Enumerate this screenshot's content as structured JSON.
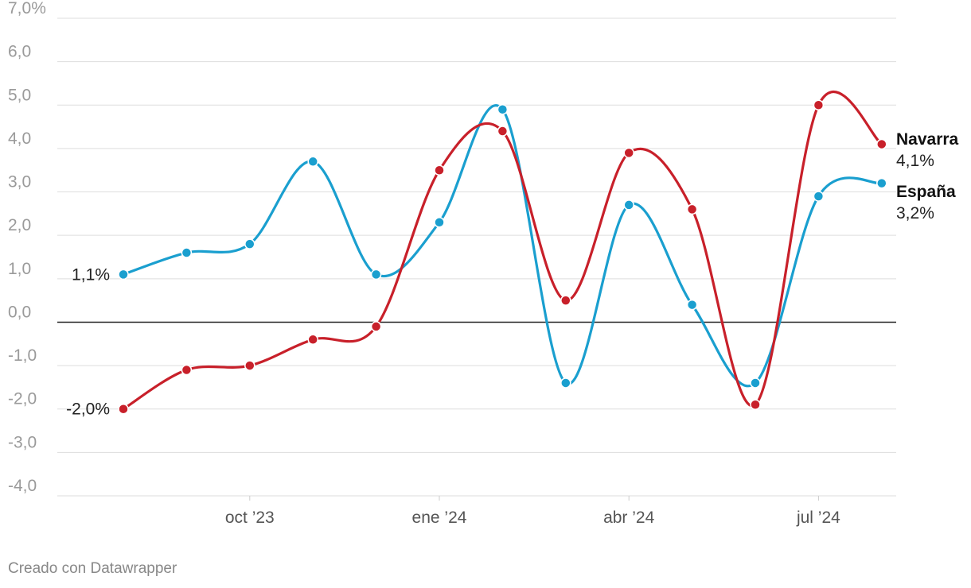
{
  "chart_data": {
    "type": "line",
    "title": "",
    "xlabel": "",
    "ylabel": "",
    "ylim": [
      -4,
      7
    ],
    "yticks": [
      7,
      6,
      5,
      4,
      3,
      2,
      1,
      0,
      -1,
      -2,
      -3,
      -4
    ],
    "ytick_labels": [
      "7,0%",
      "6,0",
      "5,0",
      "4,0",
      "3,0",
      "2,0",
      "1,0",
      "0,0",
      "-1,0",
      "-2,0",
      "-3,0",
      "-4,0"
    ],
    "x": [
      "2023-08",
      "2023-09",
      "2023-10",
      "2023-11",
      "2023-12",
      "2024-01",
      "2024-02",
      "2024-03",
      "2024-04",
      "2024-05",
      "2024-06",
      "2024-07",
      "2024-08"
    ],
    "xticks": [
      "2023-10",
      "2024-01",
      "2024-04",
      "2024-07"
    ],
    "xtick_labels": [
      "oct ’23",
      "ene ’24",
      "abr ’24",
      "jul ’24"
    ],
    "grid": true,
    "zero_line": true,
    "series": [
      {
        "name": "España",
        "color": "#1a9fcf",
        "values": [
          1.1,
          1.6,
          1.8,
          3.7,
          1.1,
          2.3,
          4.9,
          -1.4,
          2.7,
          0.4,
          -1.4,
          2.9,
          3.2
        ],
        "start_label": "1,1%",
        "end_label": "3,2%"
      },
      {
        "name": "Navarra",
        "color": "#c8202a",
        "values": [
          -2.0,
          -1.1,
          -1.0,
          -0.4,
          -0.1,
          3.5,
          4.4,
          0.5,
          3.9,
          2.6,
          -1.9,
          5.0,
          4.1
        ],
        "start_label": "-2,0%",
        "end_label": "4,1%"
      }
    ]
  },
  "footer": {
    "credit": "Creado con Datawrapper"
  }
}
